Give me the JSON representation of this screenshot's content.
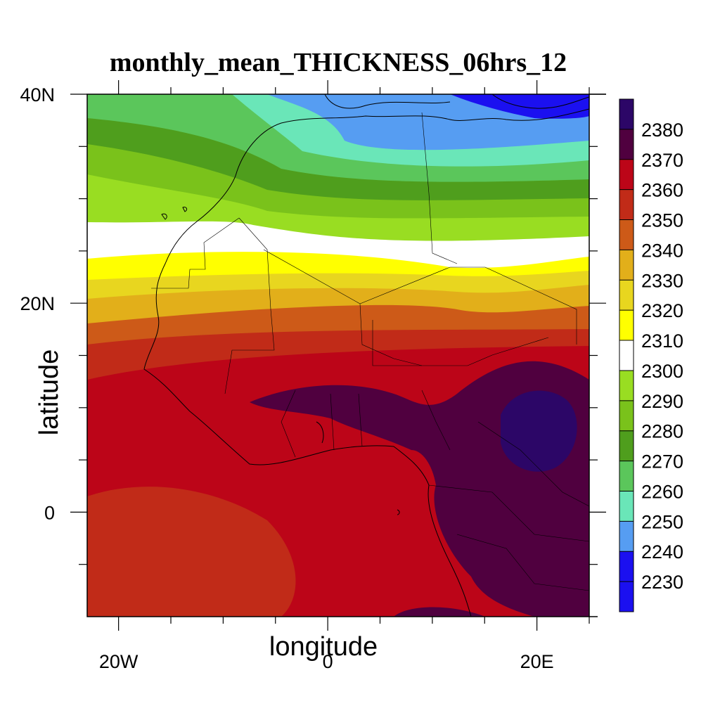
{
  "map": {
    "title": "monthly_mean_THICKNESS_06hrs_12",
    "xlabel": "longitude",
    "ylabel": "latitude",
    "y_ticks": [
      {
        "value": 40,
        "label": "40N"
      },
      {
        "value": 20,
        "label": "20N"
      },
      {
        "value": 0,
        "label": "0"
      }
    ],
    "x_ticks": [
      {
        "value": -20,
        "label": "20W"
      },
      {
        "value": 0,
        "label": "0"
      },
      {
        "value": 20,
        "label": "20E"
      }
    ],
    "lon_range": [
      -23,
      25
    ],
    "lat_range": [
      -10,
      40
    ]
  },
  "colorbar": {
    "levels": [
      {
        "label": "2380",
        "color": "#50003f"
      },
      {
        "label": "2370",
        "color": "#bc0518"
      },
      {
        "label": "2360",
        "color": "#c12b18"
      },
      {
        "label": "2350",
        "color": "#cd5a18"
      },
      {
        "label": "2340",
        "color": "#e2af1a"
      },
      {
        "label": "2330",
        "color": "#e8d61f"
      },
      {
        "label": "2320",
        "color": "#ffff00"
      },
      {
        "label": "2310",
        "color": "#ffffff"
      },
      {
        "label": "2300",
        "color": "#99dd22"
      },
      {
        "label": "2290",
        "color": "#7ac21b"
      },
      {
        "label": "2280",
        "color": "#4f9e1d"
      },
      {
        "label": "2270",
        "color": "#5bc65b"
      },
      {
        "label": "2260",
        "color": "#6ae6b8"
      },
      {
        "label": "2250",
        "color": "#569df2"
      },
      {
        "label": "2240",
        "color": "#1b10f0"
      },
      {
        "label": "2230",
        "color": "#1b10f0"
      }
    ],
    "top_color": "#2c0667"
  }
}
